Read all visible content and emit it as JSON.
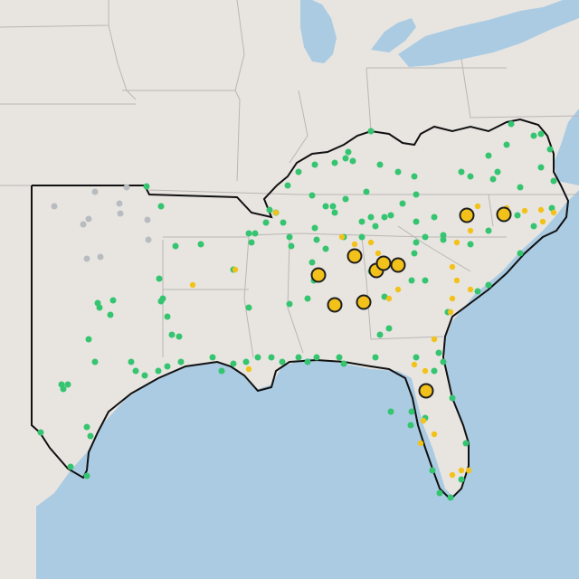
{
  "map": {
    "colors": {
      "land": "#e8e5e1",
      "water": "#aacbe2",
      "state_border": "#b9b6b3",
      "region_outline": "#111111",
      "green_marker": "#35c46f",
      "gray_marker": "#b8bcc0",
      "yellow_marker": "#f2c21a",
      "large_marker_stroke": "#1e1e1e"
    },
    "marker_legend": [
      {
        "color_key": "green_marker",
        "meaning_unknown": true
      },
      {
        "color_key": "yellow_marker",
        "meaning_unknown": true
      },
      {
        "color_key": "gray_marker",
        "meaning_unknown": true
      }
    ]
  }
}
